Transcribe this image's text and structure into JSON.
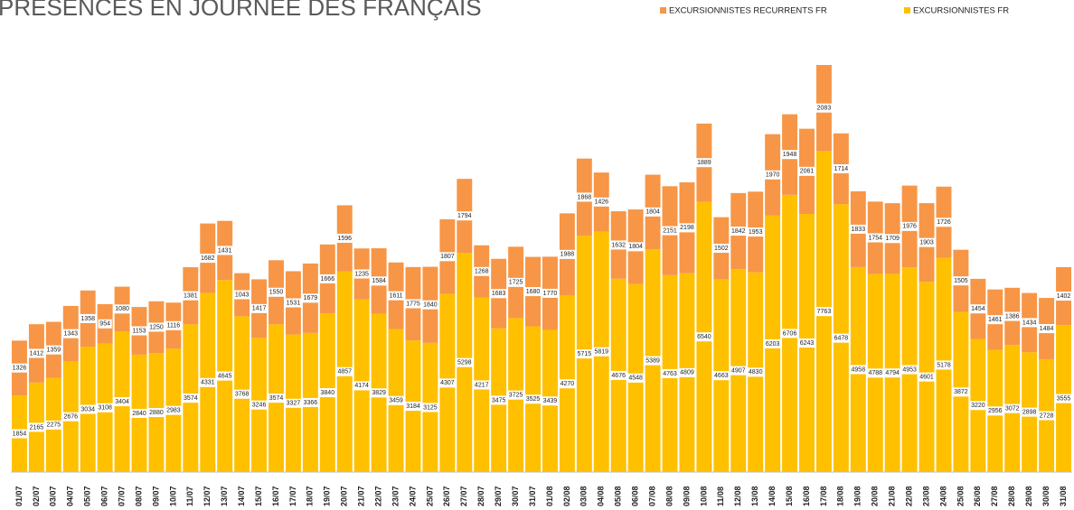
{
  "chart_data": {
    "type": "stacked_bar",
    "title": "PRÉSENCES EN JOURNÉE DES FRANÇAIS",
    "categories": [
      "01/07",
      "02/07",
      "03/07",
      "04/07",
      "05/07",
      "06/07",
      "07/07",
      "08/07",
      "09/07",
      "10/07",
      "11/07",
      "12/07",
      "13/07",
      "14/07",
      "15/07",
      "16/07",
      "17/07",
      "18/07",
      "19/07",
      "20/07",
      "21/07",
      "22/07",
      "23/07",
      "24/07",
      "25/07",
      "26/07",
      "27/07",
      "28/07",
      "29/07",
      "30/07",
      "31/07",
      "01/08",
      "02/08",
      "03/08",
      "04/08",
      "05/08",
      "06/08",
      "07/08",
      "08/08",
      "09/08",
      "10/08",
      "11/08",
      "12/08",
      "13/08",
      "14/08",
      "15/08",
      "16/08",
      "17/08",
      "18/08",
      "19/08",
      "20/08",
      "21/08",
      "22/08",
      "23/08",
      "24/08",
      "25/08",
      "26/08",
      "27/08",
      "28/08",
      "29/08",
      "30/08",
      "31/08"
    ],
    "series": [
      {
        "name": "EXCURSIONNISTES FR",
        "color": "#ffc000",
        "values": [
          1854,
          2165,
          2275,
          2676,
          3034,
          3108,
          3404,
          2840,
          2880,
          2983,
          3574,
          4331,
          4645,
          3768,
          3246,
          3574,
          3327,
          3366,
          3840,
          4857,
          4174,
          3829,
          3459,
          3184,
          3125,
          4307,
          5298,
          4217,
          3475,
          3725,
          3525,
          3439,
          4270,
          5715,
          5819,
          4676,
          4548,
          5389,
          4763,
          4809,
          6540,
          4663,
          4907,
          4830,
          6203,
          6706,
          6243,
          7763,
          6478,
          4958,
          4788,
          4794,
          4953,
          4601,
          5178,
          3872,
          3220,
          2956,
          3072,
          2898,
          2728,
          3555
        ]
      },
      {
        "name": "EXCURSIONNISTES RECURRENTS FR",
        "color": "#f79646",
        "values": [
          1326,
          1412,
          1359,
          1343,
          1358,
          954,
          1080,
          1153,
          1250,
          1116,
          1381,
          1682,
          1431,
          1043,
          1417,
          1550,
          1531,
          1679,
          1666,
          1596,
          1235,
          1584,
          1611,
          1775,
          1840,
          1807,
          1794,
          1268,
          1683,
          1725,
          1680,
          1770,
          1988,
          1868,
          1426,
          1632,
          1804,
          1804,
          2151,
          2198,
          1889,
          1502,
          1842,
          1953,
          1970,
          1948,
          2061,
          2083,
          1714,
          1833,
          1754,
          1709,
          1976,
          1903,
          1726,
          1505,
          1454,
          1461,
          1386,
          1434,
          1484,
          1402
        ]
      }
    ]
  }
}
